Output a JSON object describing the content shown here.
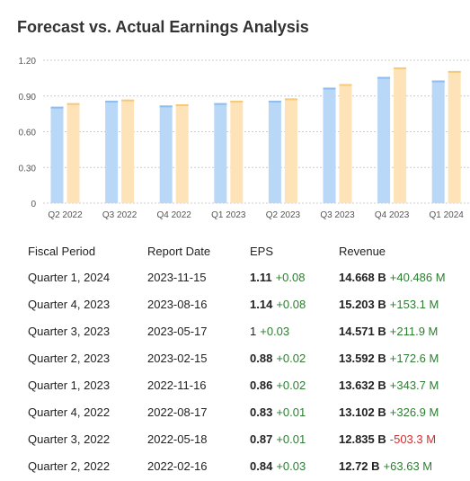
{
  "title": "Forecast vs. Actual Earnings Analysis",
  "colors": {
    "estimate": "#b9d7f7",
    "estimate_edge": "#8ebdf0",
    "actual": "#fde3b7",
    "actual_edge": "#f7c978",
    "grid": "#cccccc",
    "positive": "#2e7d32",
    "negative": "#d32f2f"
  },
  "chart_data": {
    "type": "bar",
    "categories": [
      "Q2 2022",
      "Q3 2022",
      "Q4 2022",
      "Q1 2023",
      "Q2 2023",
      "Q3 2023",
      "Q4 2023",
      "Q1 2024"
    ],
    "series": [
      {
        "values": [
          0.81,
          0.86,
          0.82,
          0.84,
          0.86,
          0.97,
          1.06,
          1.03
        ]
      },
      {
        "values": [
          0.84,
          0.87,
          0.83,
          0.86,
          0.88,
          1.0,
          1.14,
          1.11
        ]
      }
    ],
    "yticks": [
      "0",
      "0.30",
      "0.60",
      "0.90",
      "1.20"
    ],
    "ylim": [
      0,
      1.2
    ],
    "grid": true
  },
  "table": {
    "headers": [
      "Fiscal Period",
      "Report Date",
      "EPS",
      "Revenue"
    ],
    "rows": [
      {
        "period": "Quarter 1, 2024",
        "date": "2023-11-15",
        "eps": "1.11",
        "eps_diff": "+0.08",
        "eps_sign": "pos",
        "revenue": "14.668 B",
        "rev_diff": "+40.486 M",
        "rev_sign": "pos"
      },
      {
        "period": "Quarter 4, 2023",
        "date": "2023-08-16",
        "eps": "1.14",
        "eps_diff": "+0.08",
        "eps_sign": "pos",
        "revenue": "15.203 B",
        "rev_diff": "+153.1 M",
        "rev_sign": "pos"
      },
      {
        "period": "Quarter 3, 2023",
        "date": "2023-05-17",
        "eps": "1",
        "eps_diff": "+0.03",
        "eps_sign": "pos",
        "revenue": "14.571 B",
        "rev_diff": "+211.9 M",
        "rev_sign": "pos",
        "eps_plain": true
      },
      {
        "period": "Quarter 2, 2023",
        "date": "2023-02-15",
        "eps": "0.88",
        "eps_diff": "+0.02",
        "eps_sign": "pos",
        "revenue": "13.592 B",
        "rev_diff": "+172.6 M",
        "rev_sign": "pos"
      },
      {
        "period": "Quarter 1, 2023",
        "date": "2022-11-16",
        "eps": "0.86",
        "eps_diff": "+0.02",
        "eps_sign": "pos",
        "revenue": "13.632 B",
        "rev_diff": "+343.7 M",
        "rev_sign": "pos"
      },
      {
        "period": "Quarter 4, 2022",
        "date": "2022-08-17",
        "eps": "0.83",
        "eps_diff": "+0.01",
        "eps_sign": "pos",
        "revenue": "13.102 B",
        "rev_diff": "+326.9 M",
        "rev_sign": "pos"
      },
      {
        "period": "Quarter 3, 2022",
        "date": "2022-05-18",
        "eps": "0.87",
        "eps_diff": "+0.01",
        "eps_sign": "pos",
        "revenue": "12.835 B",
        "rev_diff": "-503.3 M",
        "rev_sign": "neg"
      },
      {
        "period": "Quarter 2, 2022",
        "date": "2022-02-16",
        "eps": "0.84",
        "eps_diff": "+0.03",
        "eps_sign": "pos",
        "revenue": "12.72 B",
        "rev_diff": "+63.63 M",
        "rev_sign": "pos"
      }
    ]
  }
}
